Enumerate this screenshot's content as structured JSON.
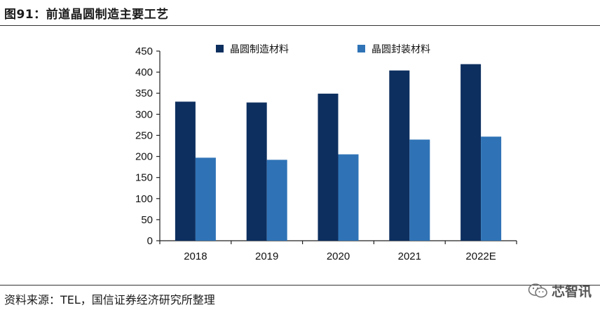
{
  "header": {
    "title": "图91：前道晶圆制造主要工艺"
  },
  "footer": {
    "source": "资料来源：TEL，国信证券经济研究所整理",
    "watermark": "芯智讯"
  },
  "colors": {
    "series_dark": "#0d2f5f",
    "series_light": "#2f73b6"
  },
  "chart_data": {
    "type": "bar",
    "categories": [
      "2018",
      "2019",
      "2020",
      "2021",
      "2022E"
    ],
    "series": [
      {
        "name": "晶圆制造材料",
        "values": [
          330,
          328,
          349,
          404,
          419
        ]
      },
      {
        "name": "晶圆封装材料",
        "values": [
          197,
          192,
          205,
          240,
          247
        ]
      }
    ],
    "title": "",
    "xlabel": "",
    "ylabel": "",
    "ylim": [
      0,
      450
    ],
    "yticks": [
      0,
      50,
      100,
      150,
      200,
      250,
      300,
      350,
      400,
      450
    ],
    "grid": false,
    "legend_position": "top"
  }
}
